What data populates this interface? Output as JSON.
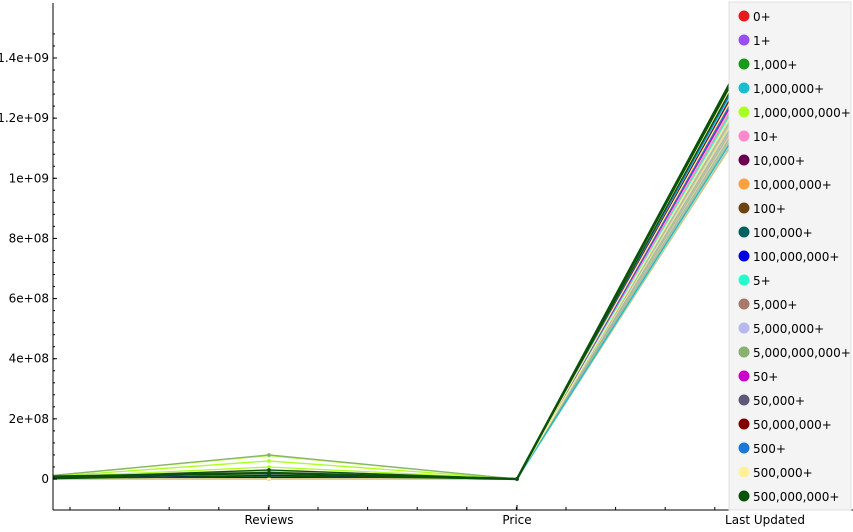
{
  "chart_data": {
    "type": "parallel-coordinates",
    "axes": [
      "Reviews",
      "Price",
      "Last Updated"
    ],
    "yticks": [
      {
        "value": 0,
        "label": "0"
      },
      {
        "value": 200000000,
        "label": "2e+08"
      },
      {
        "value": 400000000,
        "label": "4e+08"
      },
      {
        "value": 600000000,
        "label": "6e+08"
      },
      {
        "value": 800000000,
        "label": "8e+08"
      },
      {
        "value": 1000000000,
        "label": "1e+09"
      },
      {
        "value": 1200000000,
        "label": "1.2e+09"
      },
      {
        "value": 1400000000,
        "label": "1.4e+09"
      }
    ],
    "ylim": [
      -100000000,
      1570000000
    ],
    "legend_position": "right",
    "series": [
      {
        "name": "0+",
        "color": "#e41a1c",
        "values": [
          [
            0,
            0,
            1500000000
          ]
        ]
      },
      {
        "name": "1+",
        "color": "#984ef3",
        "values": [
          [
            1,
            0,
            1490000000
          ],
          [
            3,
            0,
            1440000000
          ]
        ]
      },
      {
        "name": "1,000+",
        "color": "#1a9a1a",
        "values": [
          [
            500,
            0,
            1530000000
          ],
          [
            800,
            0,
            1470000000
          ]
        ]
      },
      {
        "name": "1,000,000+",
        "color": "#17becf",
        "values": [
          [
            5000000,
            0,
            1520000000
          ],
          [
            10000000,
            0,
            1300000000
          ]
        ]
      },
      {
        "name": "1,000,000,000+",
        "color": "#aaff22",
        "values": [
          [
            78000000,
            0,
            1533000000
          ],
          [
            60000000,
            0,
            1520000000
          ],
          [
            40000000,
            0,
            1510000000
          ]
        ]
      },
      {
        "name": "10+",
        "color": "#ff88cc",
        "values": [
          [
            2,
            0,
            1480000000
          ],
          [
            5,
            0,
            1420000000
          ]
        ]
      },
      {
        "name": "10,000+",
        "color": "#6a0050",
        "values": [
          [
            2000,
            0,
            1500000000
          ],
          [
            5000,
            0,
            1460000000
          ]
        ]
      },
      {
        "name": "10,000,000+",
        "color": "#ffa040",
        "values": [
          [
            500000,
            0,
            1510000000
          ],
          [
            800000,
            0,
            1460000000
          ]
        ]
      },
      {
        "name": "100+",
        "color": "#6b4410",
        "values": [
          [
            20,
            0,
            1490000000
          ],
          [
            50,
            0,
            1450000000
          ]
        ]
      },
      {
        "name": "100,000+",
        "color": "#006060",
        "values": [
          [
            5000,
            0,
            1500000000
          ],
          [
            20000,
            0,
            1450000000
          ]
        ]
      },
      {
        "name": "100,000,000+",
        "color": "#0000e0",
        "values": [
          [
            5000000,
            0,
            1525000000
          ],
          [
            12000000,
            0,
            1480000000
          ]
        ]
      },
      {
        "name": "5+",
        "color": "#22ffcc",
        "values": [
          [
            1,
            0,
            1480000000
          ],
          [
            3,
            0,
            1410000000
          ]
        ]
      },
      {
        "name": "5,000+",
        "color": "#a87a6a",
        "values": [
          [
            1000,
            0,
            1500000000
          ],
          [
            2000,
            0,
            1450000000
          ]
        ]
      },
      {
        "name": "5,000,000+",
        "color": "#b8b8f0",
        "values": [
          [
            500000,
            0,
            1515000000
          ],
          [
            1000000,
            0,
            1470000000
          ]
        ]
      },
      {
        "name": "5,000,000,000+",
        "color": "#88b070",
        "values": [
          [
            80000000,
            0,
            1535000000
          ]
        ]
      },
      {
        "name": "50+",
        "color": "#cc00cc",
        "values": [
          [
            10,
            0,
            1490000000
          ],
          [
            30,
            0,
            1440000000
          ]
        ]
      },
      {
        "name": "50,000+",
        "color": "#605878",
        "values": [
          [
            2000,
            0,
            1500000000
          ],
          [
            10000,
            0,
            1450000000
          ]
        ]
      },
      {
        "name": "50,000,000+",
        "color": "#800000",
        "values": [
          [
            2000000,
            0,
            1520000000
          ],
          [
            4000000,
            0,
            1470000000
          ]
        ]
      },
      {
        "name": "500+",
        "color": "#1a78d8",
        "values": [
          [
            100,
            0,
            1490000000
          ],
          [
            200,
            0,
            1450000000
          ]
        ]
      },
      {
        "name": "500,000+",
        "color": "#fff099",
        "values": [
          [
            30000,
            0,
            1510000000
          ],
          [
            50000,
            0,
            1460000000
          ],
          [
            20000,
            0,
            1400000000
          ]
        ]
      },
      {
        "name": "500,000,000+",
        "color": "#0a520a",
        "values": [
          [
            20000000,
            0,
            1533000000
          ],
          [
            30000000,
            0,
            1500000000
          ],
          [
            10000000,
            0,
            1520000000
          ]
        ]
      }
    ]
  }
}
